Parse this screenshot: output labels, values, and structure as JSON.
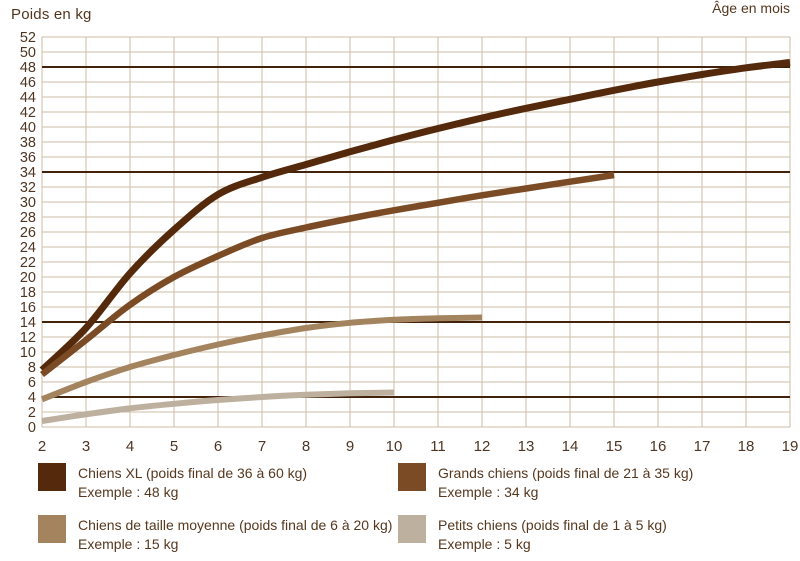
{
  "title": "Poids en kg",
  "xlabel": "Âge en mois",
  "colors": {
    "grid": "#cdbda6",
    "reference_line": "#42220b",
    "tick_text": "#4e3524",
    "label_text": "#56381f"
  },
  "chart_data": {
    "type": "line",
    "xlabel": "Âge en mois",
    "ylabel": "Poids en kg",
    "xlim": [
      2,
      19
    ],
    "ylim": [
      0,
      52
    ],
    "xticks": [
      2,
      3,
      4,
      5,
      6,
      7,
      8,
      9,
      10,
      11,
      12,
      13,
      14,
      15,
      16,
      17,
      18,
      19
    ],
    "yticks": [
      0,
      2,
      4,
      6,
      8,
      10,
      12,
      14,
      16,
      18,
      20,
      22,
      24,
      26,
      28,
      30,
      32,
      34,
      36,
      38,
      40,
      42,
      44,
      46,
      48,
      50,
      52
    ],
    "grid": true,
    "reference_lines": [
      48,
      34,
      14,
      4
    ],
    "series": [
      {
        "id": "chiens-xl",
        "name": "Chiens XL (poids final de 36 à 60 kg)",
        "example": "Exemple : 48 kg",
        "color": "#552a0c",
        "stroke_width": 7,
        "x": [
          2,
          3,
          4,
          5,
          6,
          7,
          8,
          9,
          10,
          11,
          12,
          13,
          14,
          15,
          16,
          17,
          18,
          19
        ],
        "values": [
          7.6,
          13.2,
          20.5,
          26.3,
          31.0,
          33.3,
          35.0,
          36.7,
          38.3,
          39.8,
          41.2,
          42.5,
          43.7,
          44.9,
          46.0,
          47.0,
          47.9,
          48.6
        ]
      },
      {
        "id": "grands-chiens",
        "name": "Grands chiens (poids final de 21 à 35 kg)",
        "example": "Exemple : 34 kg",
        "color": "#7b4b26",
        "stroke_width": 6.5,
        "x": [
          2,
          3,
          4,
          5,
          6,
          7,
          8,
          9,
          10,
          11,
          12,
          13,
          14,
          15
        ],
        "values": [
          7.0,
          11.6,
          16.3,
          20.0,
          22.8,
          25.2,
          26.6,
          27.8,
          28.9,
          29.9,
          30.9,
          31.8,
          32.7,
          33.6
        ]
      },
      {
        "id": "chiens-moyens",
        "name": "Chiens de taille moyenne (poids final de 6 à 20 kg)",
        "example": "Exemple : 15 kg",
        "color": "#a4835f",
        "stroke_width": 6,
        "x": [
          2,
          3,
          4,
          5,
          6,
          7,
          8,
          9,
          10,
          11,
          12
        ],
        "values": [
          3.7,
          6.0,
          8.0,
          9.6,
          11.0,
          12.2,
          13.2,
          13.9,
          14.3,
          14.5,
          14.6
        ]
      },
      {
        "id": "petits-chiens",
        "name": "Petits chiens (poids final de 1 à 5 kg)",
        "example": "Exemple : 5 kg",
        "color": "#bdb09e",
        "stroke_width": 6,
        "x": [
          2,
          3,
          4,
          5,
          6,
          7,
          8,
          9,
          10
        ],
        "values": [
          0.8,
          1.7,
          2.5,
          3.1,
          3.6,
          4.0,
          4.3,
          4.5,
          4.6
        ]
      }
    ]
  },
  "legend": [
    {
      "label": "Chiens XL (poids final de 36 à 60 kg)",
      "example": "Exemple : 48 kg",
      "color": "#552a0c"
    },
    {
      "label": "Grands chiens (poids final de 21 à 35 kg)",
      "example": "Exemple : 34 kg",
      "color": "#7b4b26"
    },
    {
      "label": "Chiens de taille moyenne (poids final de 6 à 20 kg)",
      "example": "Exemple : 15 kg",
      "color": "#a4835f"
    },
    {
      "label": "Petits chiens (poids final de 1 à 5 kg)",
      "example": "Exemple : 5 kg",
      "color": "#bdb09e"
    }
  ]
}
